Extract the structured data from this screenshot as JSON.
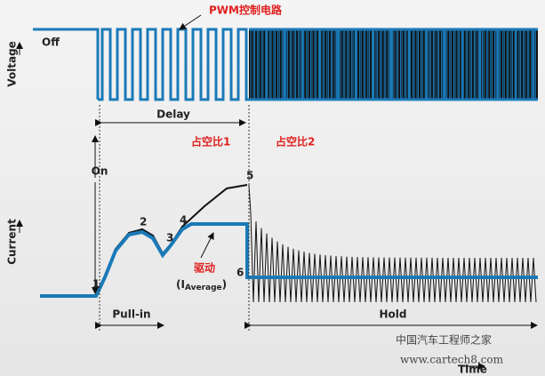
{
  "labels": {
    "pwm": "PWM控制电路",
    "off": "Off",
    "voltage": "Voltage",
    "delay": "Delay",
    "duty1": "占空比1",
    "duty2": "占空比2",
    "on": "On",
    "current": "Current",
    "drive": "驱动",
    "average_prefix": "(I",
    "average_sub": "Average",
    "average_suffix": ")",
    "pull_in": "Pull-in",
    "hold": "Hold",
    "time": "Time"
  },
  "points": [
    "1",
    "2",
    "3",
    "4",
    "5",
    "6"
  ],
  "watermark": {
    "name": "中国汽车工程师之家",
    "url": "www.cartech8.com"
  }
}
